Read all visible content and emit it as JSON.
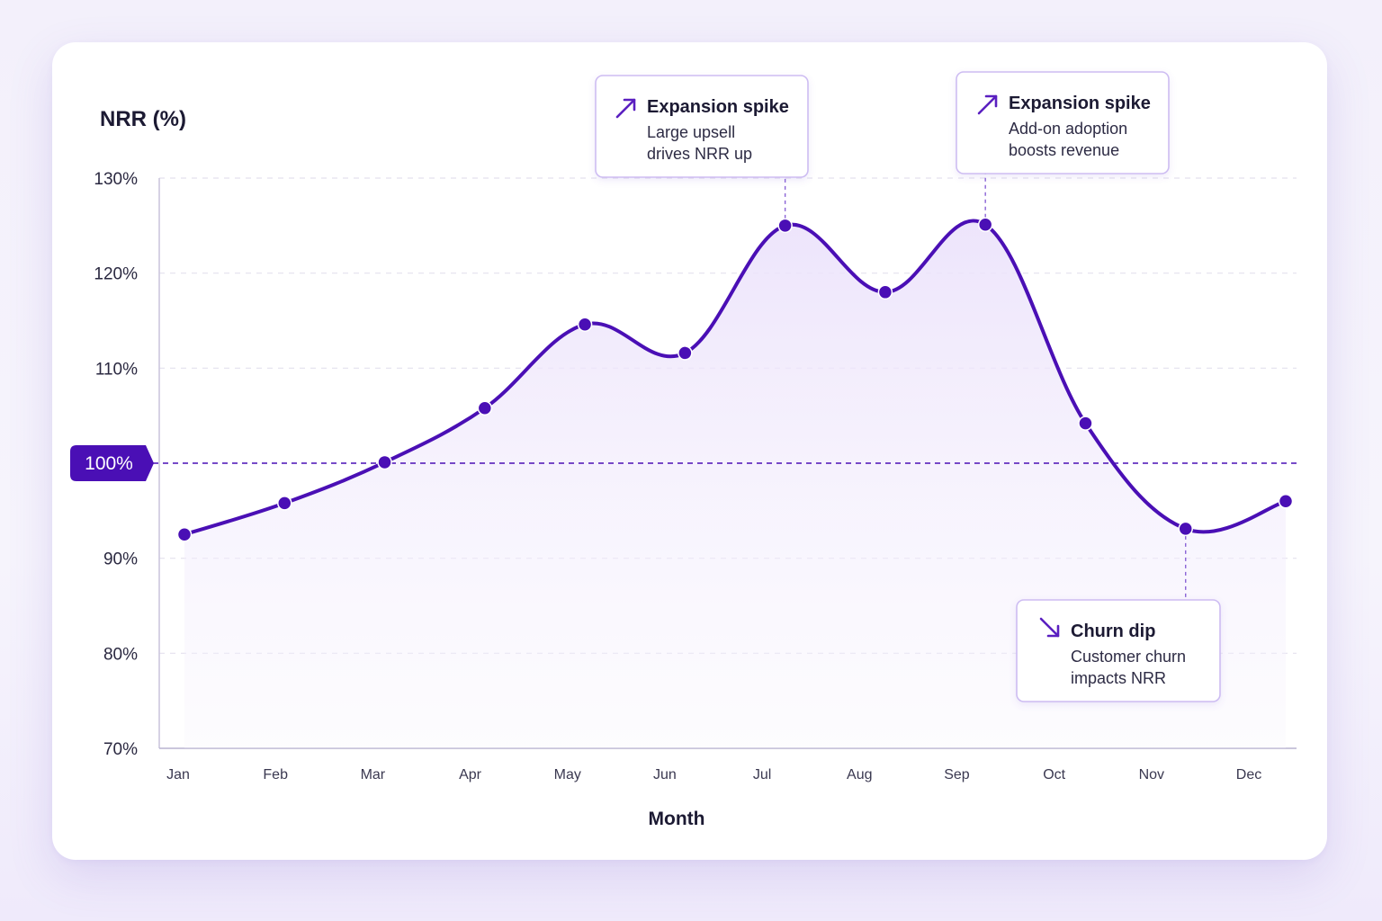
{
  "chart_data": {
    "type": "line",
    "ylabel": "NRR (%)",
    "xlabel": "Month",
    "categories": [
      "Jan",
      "Feb",
      "Mar",
      "Apr",
      "May",
      "Jun",
      "Jul",
      "Aug",
      "Sep",
      "Oct",
      "Nov",
      "Dec"
    ],
    "yticks": [
      "130%",
      "120%",
      "110%",
      "100%",
      "90%",
      "80%",
      "70%"
    ],
    "ylim": [
      70,
      130
    ],
    "grid": true,
    "area_fill": true,
    "reference_line": {
      "value": 100,
      "label": "100%"
    },
    "series": [
      {
        "x": [
          "Jan",
          "Feb",
          "Mar",
          "Apr",
          "May",
          "Jun",
          "Jul",
          "Aug",
          "Sep",
          "Oct",
          "Nov",
          "Dec"
        ],
        "values": [
          92.5,
          95.8,
          100.1,
          105.8,
          114.6,
          111.6,
          125.0,
          118.0,
          125.1,
          104.2,
          93.1,
          96.0
        ]
      }
    ],
    "annotations": [
      {
        "title": "Expansion spike",
        "lines": [
          "Large upsell",
          "drives NRR up"
        ],
        "point_index": 6,
        "direction": "up",
        "position": "above"
      },
      {
        "title": "Expansion spike",
        "lines": [
          "Add-on adoption",
          "boosts revenue"
        ],
        "point_index": 8,
        "direction": "up",
        "position": "above"
      },
      {
        "title": "Churn dip",
        "lines": [
          "Customer churn",
          "impacts NRR"
        ],
        "point_index": 10,
        "direction": "down",
        "position": "below"
      }
    ],
    "colors": {
      "line": "#4a0fb5",
      "point": "#4a0fb5",
      "reference": "#4a0fb5",
      "reference_badge": "#4a0fb5",
      "grid": "#e4e1ee",
      "area_top": "#ece3fb",
      "annotation_border": "#cdbcf2",
      "arrow": "#5a1fc0"
    }
  }
}
